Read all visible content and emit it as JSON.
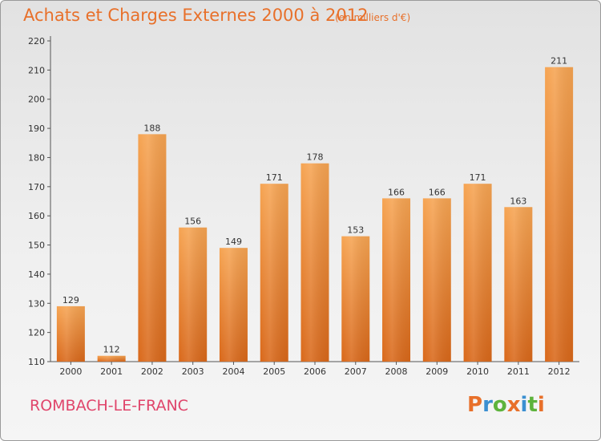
{
  "header": {
    "title": "Achats et Charges Externes 2000 à 2012",
    "subtitle": "(en milliers d'€)"
  },
  "footer": {
    "city": "ROMBACH-LE-FRANC",
    "logo": "Proxiti"
  },
  "colors": {
    "bar_top": "#f6a452",
    "bar_bottom": "#d9681a",
    "title": "#e8702a",
    "city": "#e0456b",
    "logo_letters": [
      "#e8702a",
      "#3a8fd1",
      "#5db33c",
      "#e8702a",
      "#3a8fd1",
      "#5db33c",
      "#e8702a"
    ]
  },
  "chart_data": {
    "type": "bar",
    "title": "Achats et Charges Externes 2000 à 2012",
    "subtitle": "(en milliers d'€)",
    "xlabel": "",
    "ylabel": "",
    "categories": [
      "2000",
      "2001",
      "2002",
      "2003",
      "2004",
      "2005",
      "2006",
      "2007",
      "2008",
      "2009",
      "2010",
      "2011",
      "2012"
    ],
    "values": [
      129,
      112,
      188,
      156,
      149,
      171,
      178,
      153,
      166,
      166,
      171,
      163,
      211
    ],
    "ylim": [
      110,
      220
    ],
    "yticks": [
      110,
      120,
      130,
      140,
      150,
      160,
      170,
      180,
      190,
      200,
      210,
      220
    ],
    "grid": false,
    "data_labels": true
  }
}
